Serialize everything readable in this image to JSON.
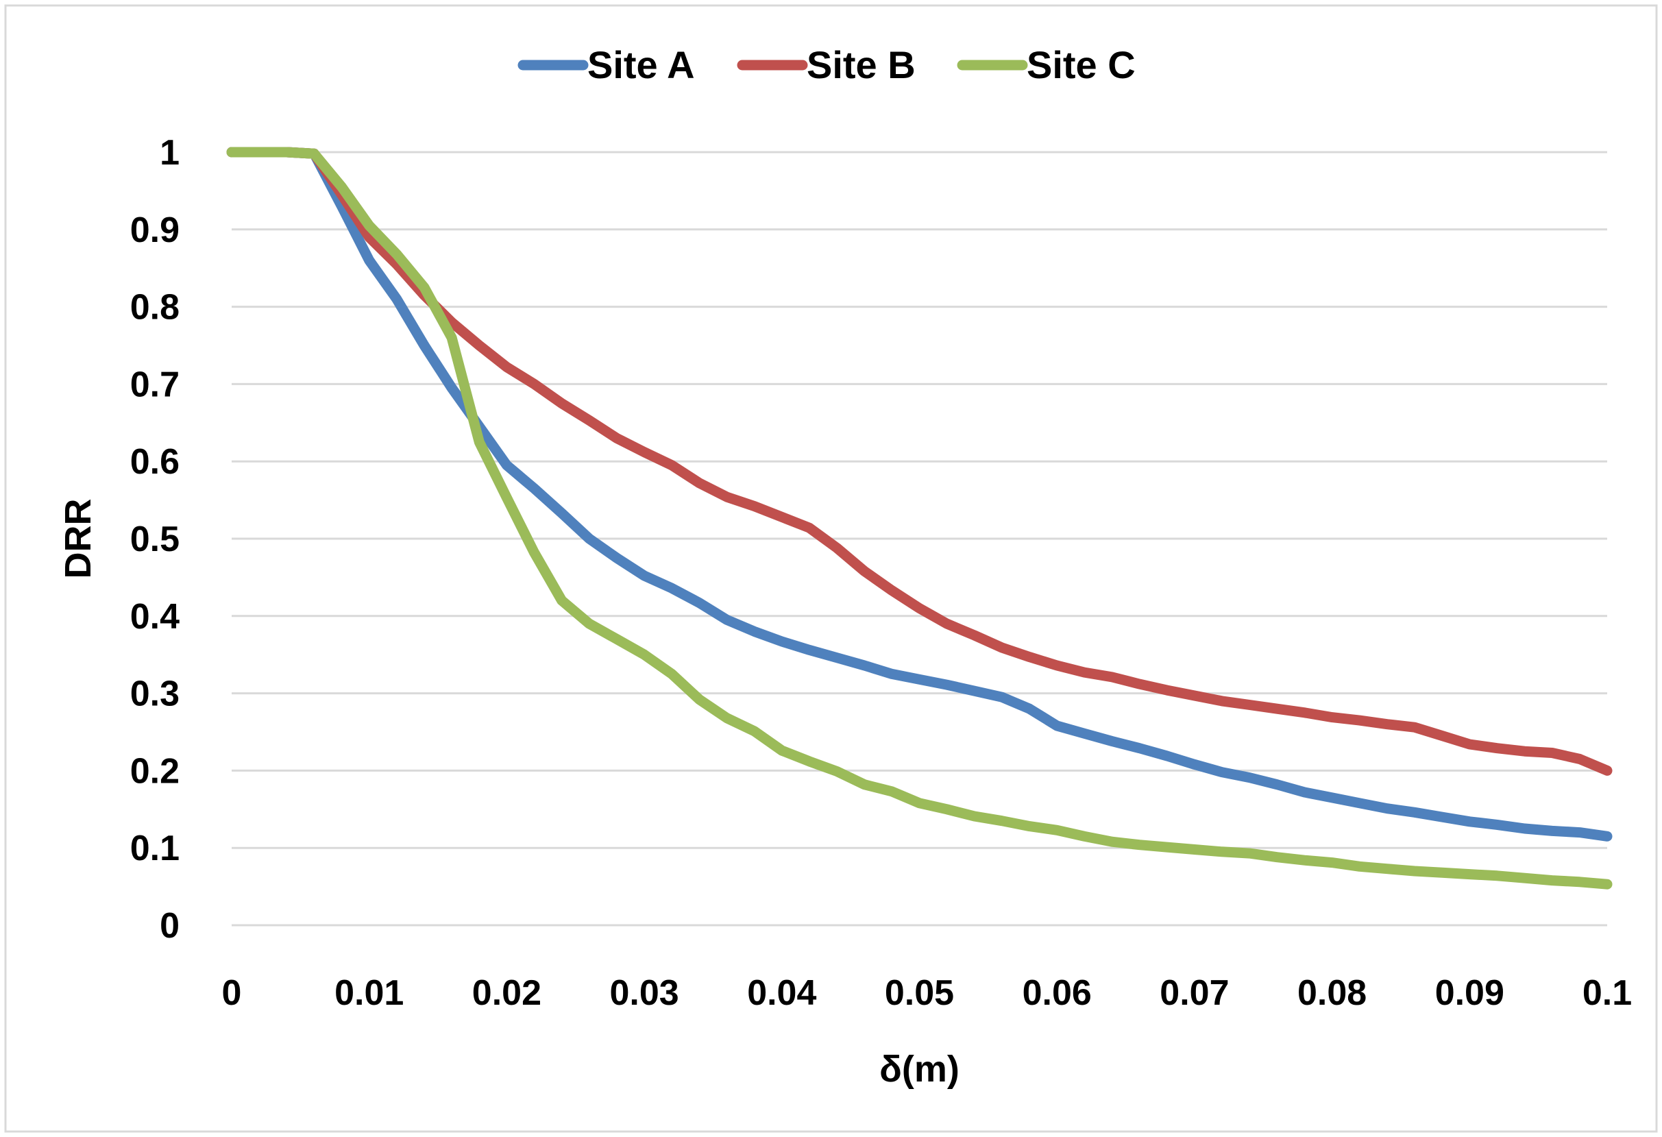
{
  "chart_data": {
    "type": "line",
    "title": "",
    "xlabel": "δ(m)",
    "ylabel": "DRR",
    "xlim": [
      0,
      0.1
    ],
    "ylim": [
      0,
      1
    ],
    "x_ticks": [
      "0",
      "0.01",
      "0.02",
      "0.03",
      "0.04",
      "0.05",
      "0.06",
      "0.07",
      "0.08",
      "0.09",
      "0.1"
    ],
    "y_ticks": [
      "0",
      "0.1",
      "0.2",
      "0.3",
      "0.4",
      "0.5",
      "0.6",
      "0.7",
      "0.8",
      "0.9",
      "1"
    ],
    "grid": "horizontal",
    "legend_position": "top-center",
    "x": [
      0,
      0.002,
      0.004,
      0.006,
      0.008,
      0.01,
      0.012,
      0.014,
      0.016,
      0.018,
      0.02,
      0.022,
      0.024,
      0.026,
      0.028,
      0.03,
      0.032,
      0.034,
      0.036,
      0.038,
      0.04,
      0.042,
      0.044,
      0.046,
      0.048,
      0.05,
      0.052,
      0.054,
      0.056,
      0.058,
      0.06,
      0.062,
      0.064,
      0.066,
      0.068,
      0.07,
      0.072,
      0.074,
      0.076,
      0.078,
      0.08,
      0.082,
      0.084,
      0.086,
      0.088,
      0.09,
      0.092,
      0.094,
      0.096,
      0.098,
      0.1
    ],
    "series": [
      {
        "name": "Site A",
        "color": "#4F81BD",
        "values": [
          1.0,
          1.0,
          1.0,
          0.998,
          0.93,
          0.86,
          0.81,
          0.75,
          0.695,
          0.645,
          0.595,
          0.565,
          0.533,
          0.5,
          0.475,
          0.452,
          0.436,
          0.417,
          0.395,
          0.38,
          0.367,
          0.356,
          0.346,
          0.336,
          0.325,
          0.318,
          0.311,
          0.303,
          0.295,
          0.28,
          0.258,
          0.248,
          0.238,
          0.229,
          0.219,
          0.208,
          0.198,
          0.191,
          0.182,
          0.172,
          0.165,
          0.158,
          0.151,
          0.146,
          0.14,
          0.134,
          0.13,
          0.125,
          0.122,
          0.12,
          0.115
        ]
      },
      {
        "name": "Site B",
        "color": "#C0504D",
        "values": [
          1.0,
          1.0,
          1.0,
          0.998,
          0.945,
          0.89,
          0.855,
          0.815,
          0.78,
          0.75,
          0.722,
          0.7,
          0.675,
          0.653,
          0.63,
          0.612,
          0.595,
          0.572,
          0.554,
          0.542,
          0.528,
          0.514,
          0.488,
          0.458,
          0.433,
          0.41,
          0.39,
          0.375,
          0.359,
          0.347,
          0.336,
          0.327,
          0.321,
          0.312,
          0.304,
          0.297,
          0.29,
          0.285,
          0.28,
          0.275,
          0.269,
          0.265,
          0.26,
          0.256,
          0.245,
          0.234,
          0.229,
          0.225,
          0.223,
          0.215,
          0.2
        ]
      },
      {
        "name": "Site C",
        "color": "#9BBB59",
        "values": [
          1.0,
          1.0,
          1.0,
          0.998,
          0.955,
          0.905,
          0.868,
          0.825,
          0.76,
          0.625,
          0.553,
          0.482,
          0.42,
          0.39,
          0.37,
          0.35,
          0.325,
          0.292,
          0.268,
          0.251,
          0.226,
          0.212,
          0.199,
          0.182,
          0.173,
          0.158,
          0.15,
          0.141,
          0.135,
          0.128,
          0.123,
          0.115,
          0.108,
          0.104,
          0.101,
          0.098,
          0.095,
          0.093,
          0.088,
          0.084,
          0.081,
          0.076,
          0.073,
          0.07,
          0.068,
          0.066,
          0.064,
          0.061,
          0.058,
          0.056,
          0.053
        ]
      }
    ]
  }
}
